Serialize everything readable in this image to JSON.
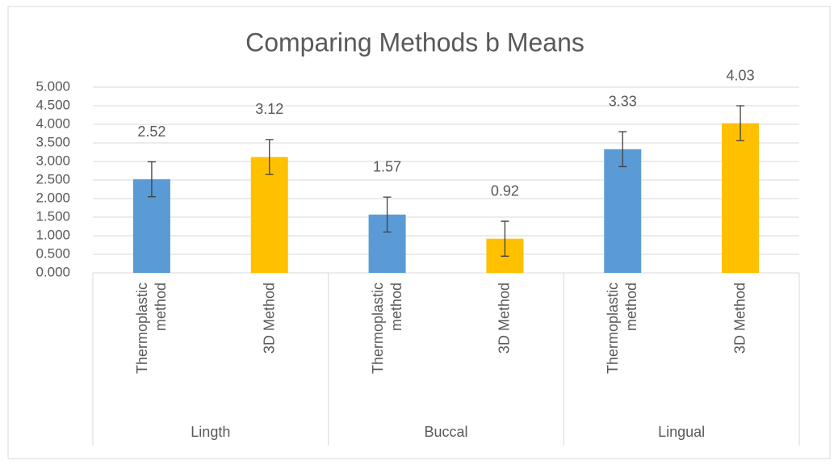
{
  "chart_data": {
    "type": "bar",
    "title": "Comparing Methods b Means",
    "categories": [
      "Lingth",
      "Buccal",
      "Lingual"
    ],
    "series": [
      {
        "name": "Thermoplastic method",
        "color": "#5b9bd5",
        "values": [
          2.52,
          1.57,
          3.33
        ],
        "errors": [
          0.47,
          0.47,
          0.47
        ]
      },
      {
        "name": "3D Method",
        "color": "#ffc000",
        "values": [
          3.12,
          0.92,
          4.03
        ],
        "errors": [
          0.47,
          0.47,
          0.47
        ]
      }
    ],
    "ylim": [
      0,
      5
    ],
    "yticks": [
      {
        "value": 0,
        "label": "0.000"
      },
      {
        "value": 0.5,
        "label": "0.500"
      },
      {
        "value": 1,
        "label": "1.000"
      },
      {
        "value": 1.5,
        "label": "1.500"
      },
      {
        "value": 2,
        "label": "2.000"
      },
      {
        "value": 2.5,
        "label": "2.500"
      },
      {
        "value": 3,
        "label": "3.000"
      },
      {
        "value": 3.5,
        "label": "3.500"
      },
      {
        "value": 4,
        "label": "4.000"
      },
      {
        "value": 4.5,
        "label": "4.500"
      },
      {
        "value": 5,
        "label": "5.000"
      }
    ],
    "grid": true
  }
}
